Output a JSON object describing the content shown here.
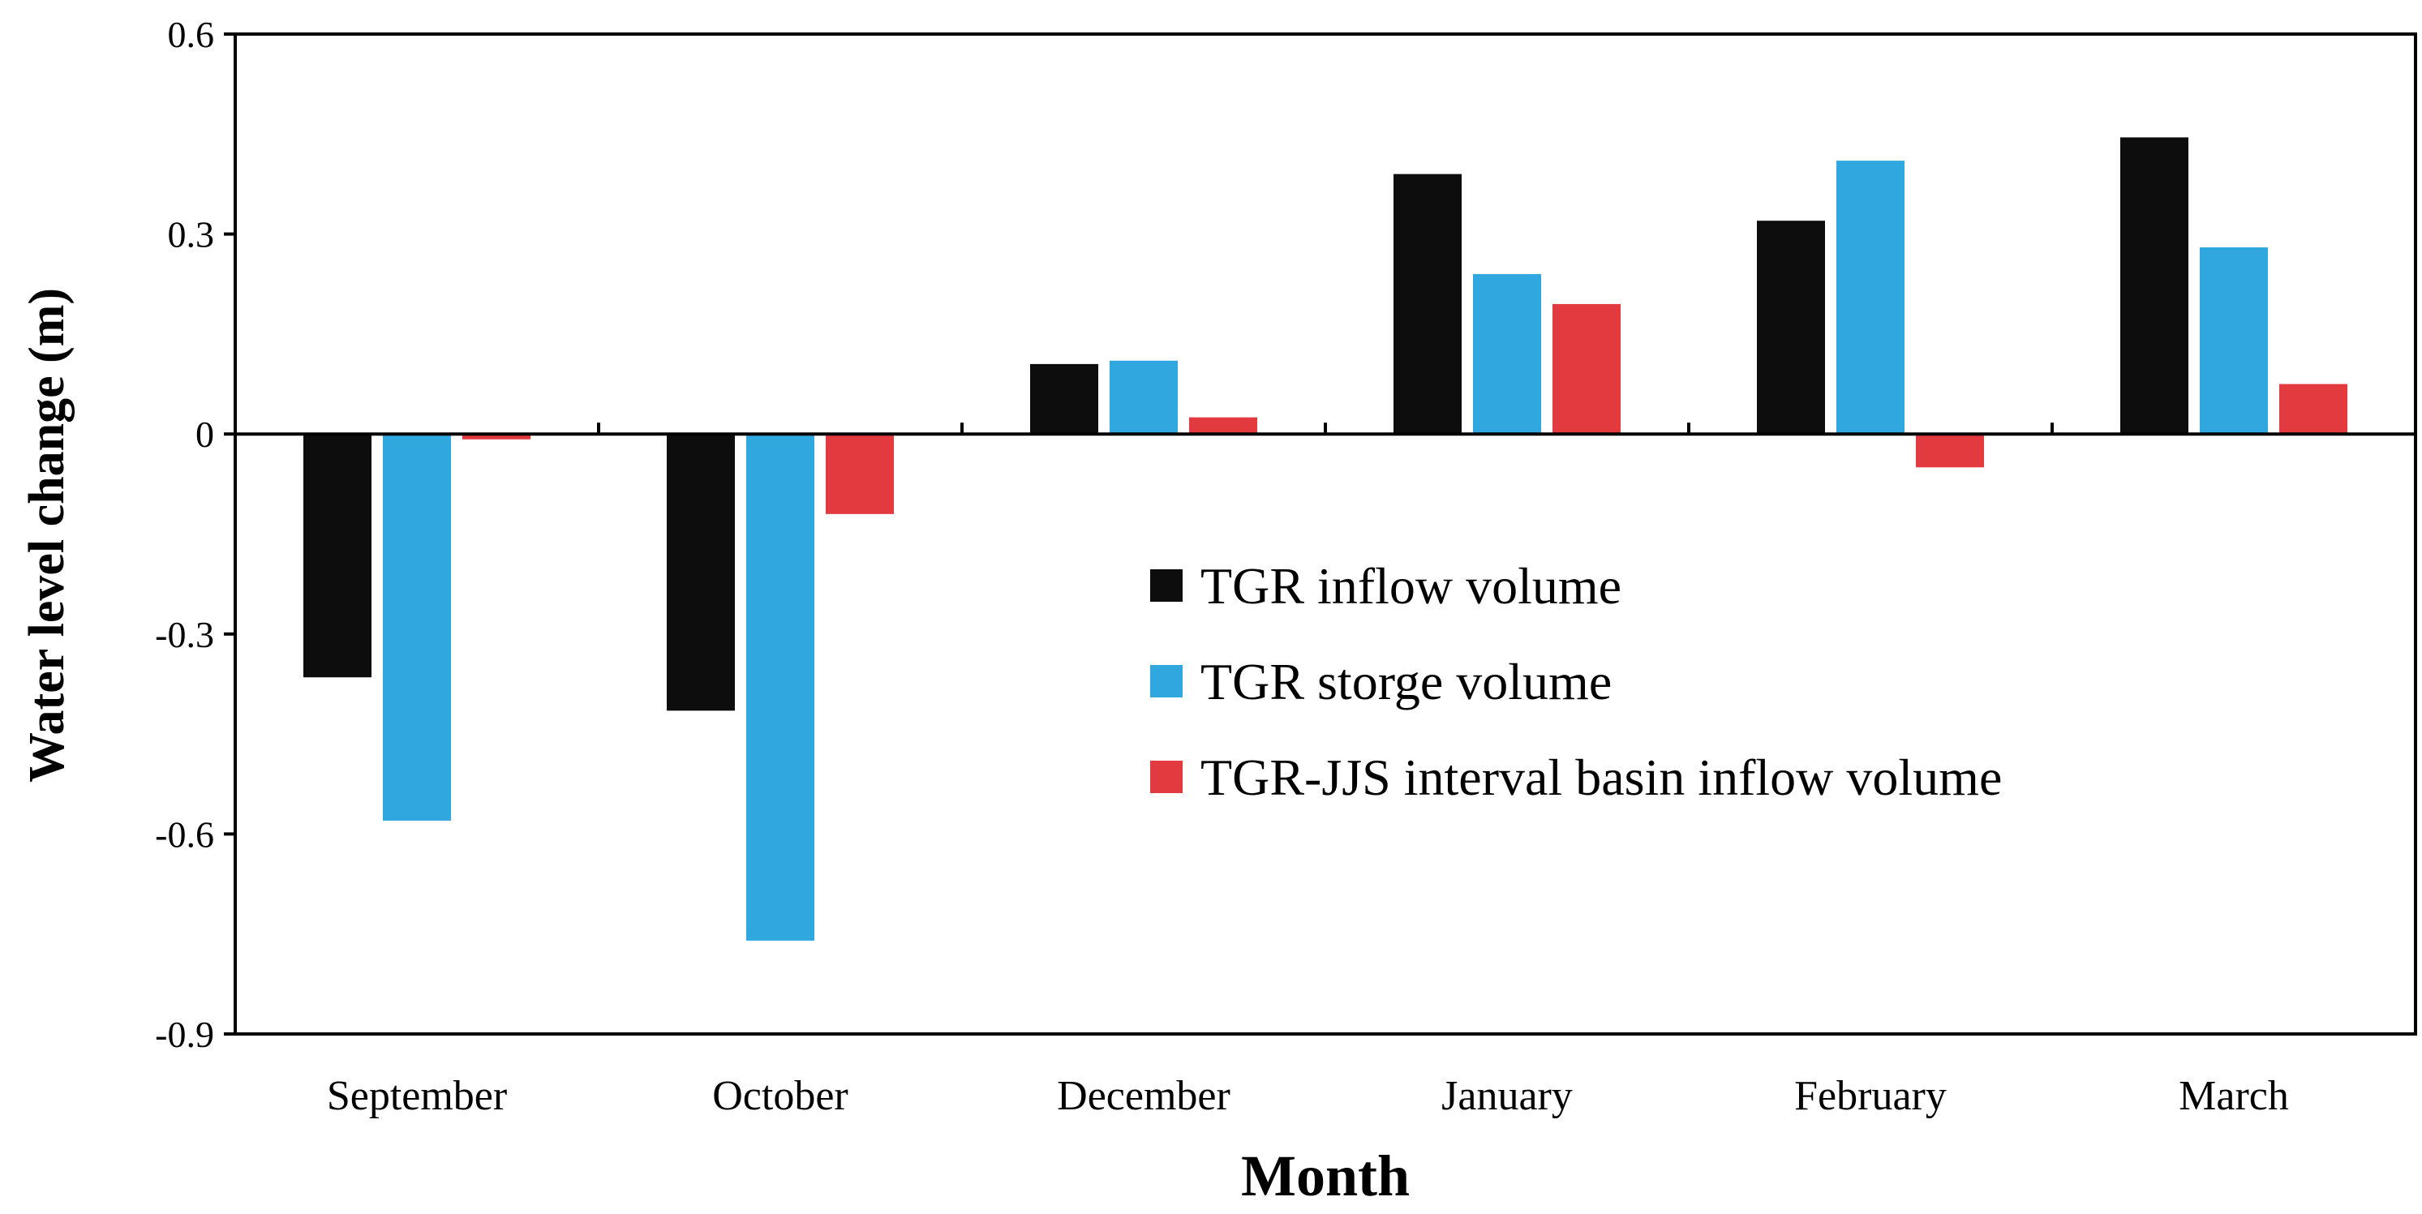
{
  "chart_data": {
    "type": "bar",
    "title": "",
    "xlabel": "Month",
    "ylabel": "Water level change (m)",
    "categories": [
      "September",
      "October",
      "December",
      "January",
      "February",
      "March"
    ],
    "ylim": [
      -0.9,
      0.6
    ],
    "yticks": [
      0.6,
      0.3,
      0,
      -0.3,
      -0.6,
      -0.9
    ],
    "ytick_labels": [
      "0.6",
      "0.3",
      "0",
      "-0.3",
      "-0.6",
      "-0.9"
    ],
    "grid": false,
    "legend_position": "center-right",
    "series": [
      {
        "name": "TGR inflow volume",
        "color": "#0d0d0d",
        "values": [
          -0.365,
          -0.415,
          0.105,
          0.39,
          0.32,
          0.445
        ]
      },
      {
        "name": "TGR storge volume",
        "color": "#30a8df",
        "values": [
          -0.58,
          -0.76,
          0.11,
          0.24,
          0.41,
          0.28
        ]
      },
      {
        "name": "TGR-JJS interval basin inflow volume",
        "color": "#e33a40",
        "values": [
          -0.008,
          -0.12,
          0.025,
          0.195,
          -0.05,
          0.075
        ]
      }
    ]
  }
}
